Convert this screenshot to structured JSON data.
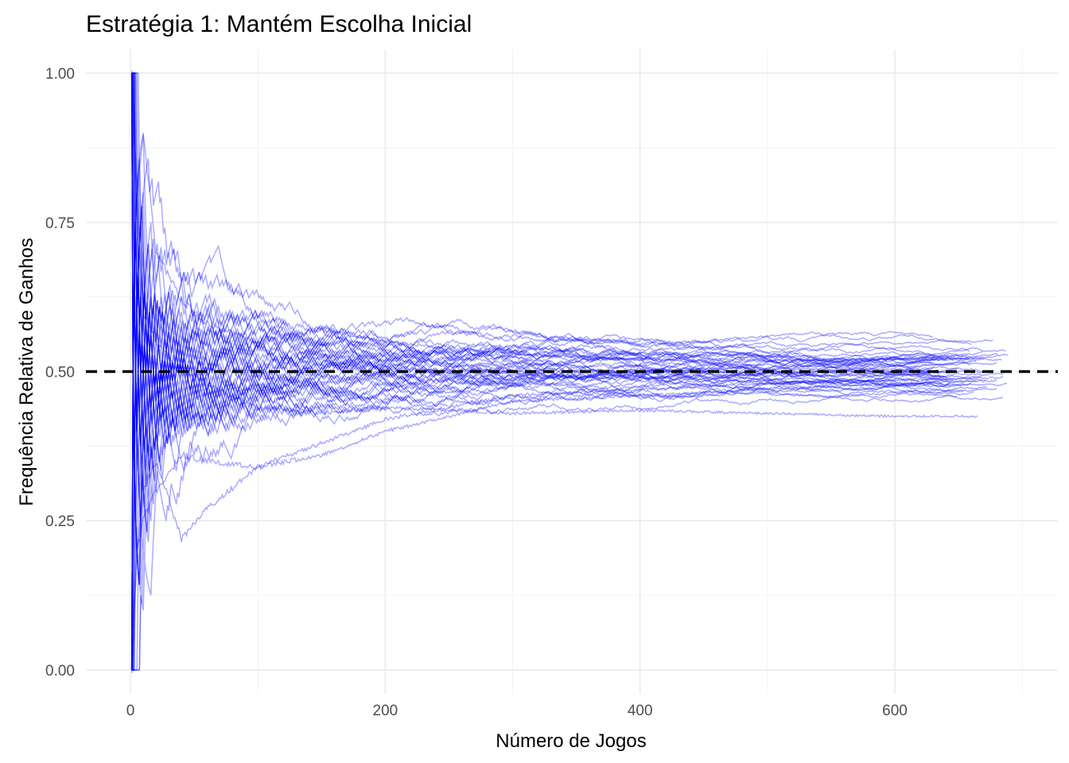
{
  "chart_data": {
    "type": "line",
    "title": "Estratégia 1: Mantém Escolha Inicial",
    "xlabel": "Número de Jogos",
    "ylabel": "Frequência Relativa de Ganhos",
    "xlim": [
      -35,
      728
    ],
    "ylim": [
      -0.04,
      1.04
    ],
    "x_ticks": [
      0,
      200,
      400,
      600
    ],
    "x_tick_labels": [
      "0",
      "200",
      "400",
      "600"
    ],
    "y_ticks": [
      0.0,
      0.25,
      0.5,
      0.75,
      1.0
    ],
    "y_tick_labels": [
      "0.00",
      "0.25",
      "0.50",
      "0.75",
      "1.00"
    ],
    "grid": true,
    "legend": "none",
    "series_color": "#0000ff",
    "reference_line": {
      "y": 0.5,
      "style": "dashed",
      "color": "#000000"
    },
    "series_count": 50,
    "series_description": "50 simulated cumulative win-frequency paths starting at game 1 and ending between roughly game 630 and 690; each converges toward 1/3 to 1/2 with one outlier near 0.42",
    "series": [
      {
        "x": [
          1,
          5,
          10,
          20,
          40,
          60,
          100,
          150,
          200,
          300,
          400,
          500,
          600,
          665
        ],
        "values": [
          1.0,
          0.8,
          0.6,
          0.55,
          0.5,
          0.48,
          0.44,
          0.43,
          0.44,
          0.43,
          0.435,
          0.43,
          0.425,
          0.425
        ]
      },
      {
        "x": [
          1,
          5,
          10,
          20,
          40,
          60,
          100,
          150,
          200,
          300,
          400,
          500,
          600,
          685
        ],
        "values": [
          0.0,
          0.2,
          0.3,
          0.35,
          0.22,
          0.27,
          0.34,
          0.38,
          0.42,
          0.46,
          0.47,
          0.48,
          0.485,
          0.49
        ]
      },
      {
        "x": [
          1,
          5,
          10,
          20,
          40,
          60,
          100,
          150,
          200,
          300,
          400,
          500,
          600,
          680
        ],
        "values": [
          0.0,
          0.2,
          0.25,
          0.3,
          0.36,
          0.35,
          0.34,
          0.36,
          0.4,
          0.45,
          0.46,
          0.47,
          0.48,
          0.485
        ]
      },
      {
        "x": [
          1,
          5,
          10,
          20,
          40,
          60,
          100,
          150,
          200,
          300,
          400,
          500,
          600,
          670
        ],
        "values": [
          1.0,
          0.8,
          0.9,
          0.7,
          0.62,
          0.58,
          0.55,
          0.57,
          0.55,
          0.53,
          0.52,
          0.52,
          0.52,
          0.52
        ]
      }
    ]
  }
}
